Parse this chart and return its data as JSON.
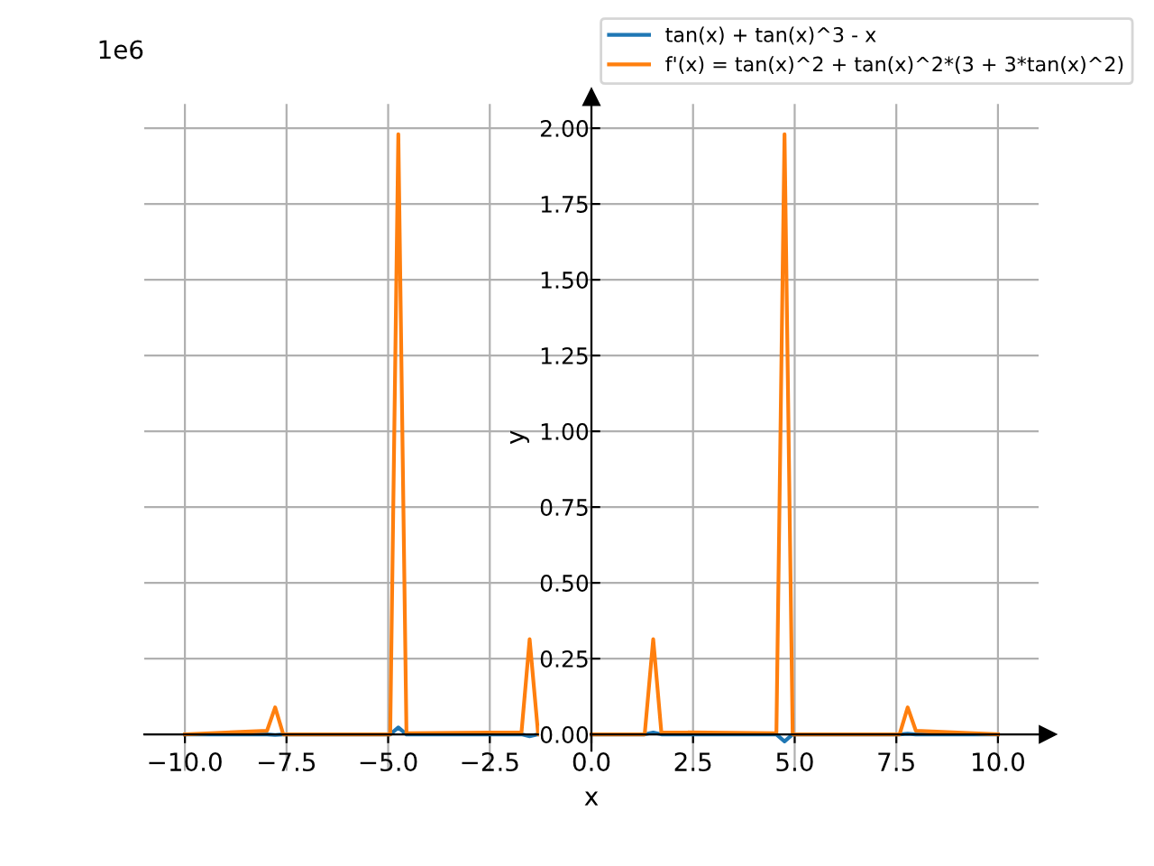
{
  "chart_data": {
    "type": "line",
    "xlabel": "x",
    "ylabel": "y",
    "annotations": [
      "1e6"
    ],
    "x": [
      -10,
      -7.98,
      -7.78,
      -7.58,
      -4.95,
      -4.75,
      -4.55,
      -1.72,
      -1.52,
      -1.31,
      1.31,
      1.52,
      1.72,
      4.55,
      4.75,
      4.95,
      7.58,
      7.78,
      7.98,
      10
    ],
    "series": [
      {
        "name": "tan(x) + tan(x)^3 - x",
        "color": "#1f77b4",
        "values": [
          0,
          0,
          -0.002,
          0,
          0,
          0.023,
          0,
          0,
          -0.006,
          0,
          0,
          0.006,
          0,
          0,
          -0.023,
          0,
          0,
          0.002,
          0,
          0
        ]
      },
      {
        "name": "f'(x) = tan(x)^2 + tan(x)^2*(3 + 3*tan(x)^2)",
        "color": "#ff7f0e",
        "values": [
          0,
          0.012,
          0.089,
          0,
          0,
          1.98,
          0.004,
          0.007,
          0.314,
          0,
          0,
          0.314,
          0.007,
          0.004,
          1.98,
          0,
          0,
          0.089,
          0.012,
          0
        ]
      }
    ],
    "xlim": [
      -11,
      11
    ],
    "ylim": [
      -0.12,
      2.08
    ],
    "xticks": [
      {
        "value": -10,
        "label": "−10.0"
      },
      {
        "value": -7.5,
        "label": "−7.5"
      },
      {
        "value": -5,
        "label": "−5.0"
      },
      {
        "value": -2.5,
        "label": "−2.5"
      },
      {
        "value": 0,
        "label": "0.0"
      },
      {
        "value": 2.5,
        "label": "2.5"
      },
      {
        "value": 5,
        "label": "5.0"
      },
      {
        "value": 7.5,
        "label": "7.5"
      },
      {
        "value": 10,
        "label": "10.0"
      }
    ],
    "yticks": [
      {
        "value": 0,
        "label": "0.00"
      },
      {
        "value": 0.25,
        "label": "0.25"
      },
      {
        "value": 0.5,
        "label": "0.50"
      },
      {
        "value": 0.75,
        "label": "0.75"
      },
      {
        "value": 1,
        "label": "1.00"
      },
      {
        "value": 1.25,
        "label": "1.25"
      },
      {
        "value": 1.5,
        "label": "1.50"
      },
      {
        "value": 1.75,
        "label": "1.75"
      },
      {
        "value": 2,
        "label": "2.00"
      }
    ],
    "grid": true,
    "legend": "top right",
    "line_style": "solid"
  }
}
